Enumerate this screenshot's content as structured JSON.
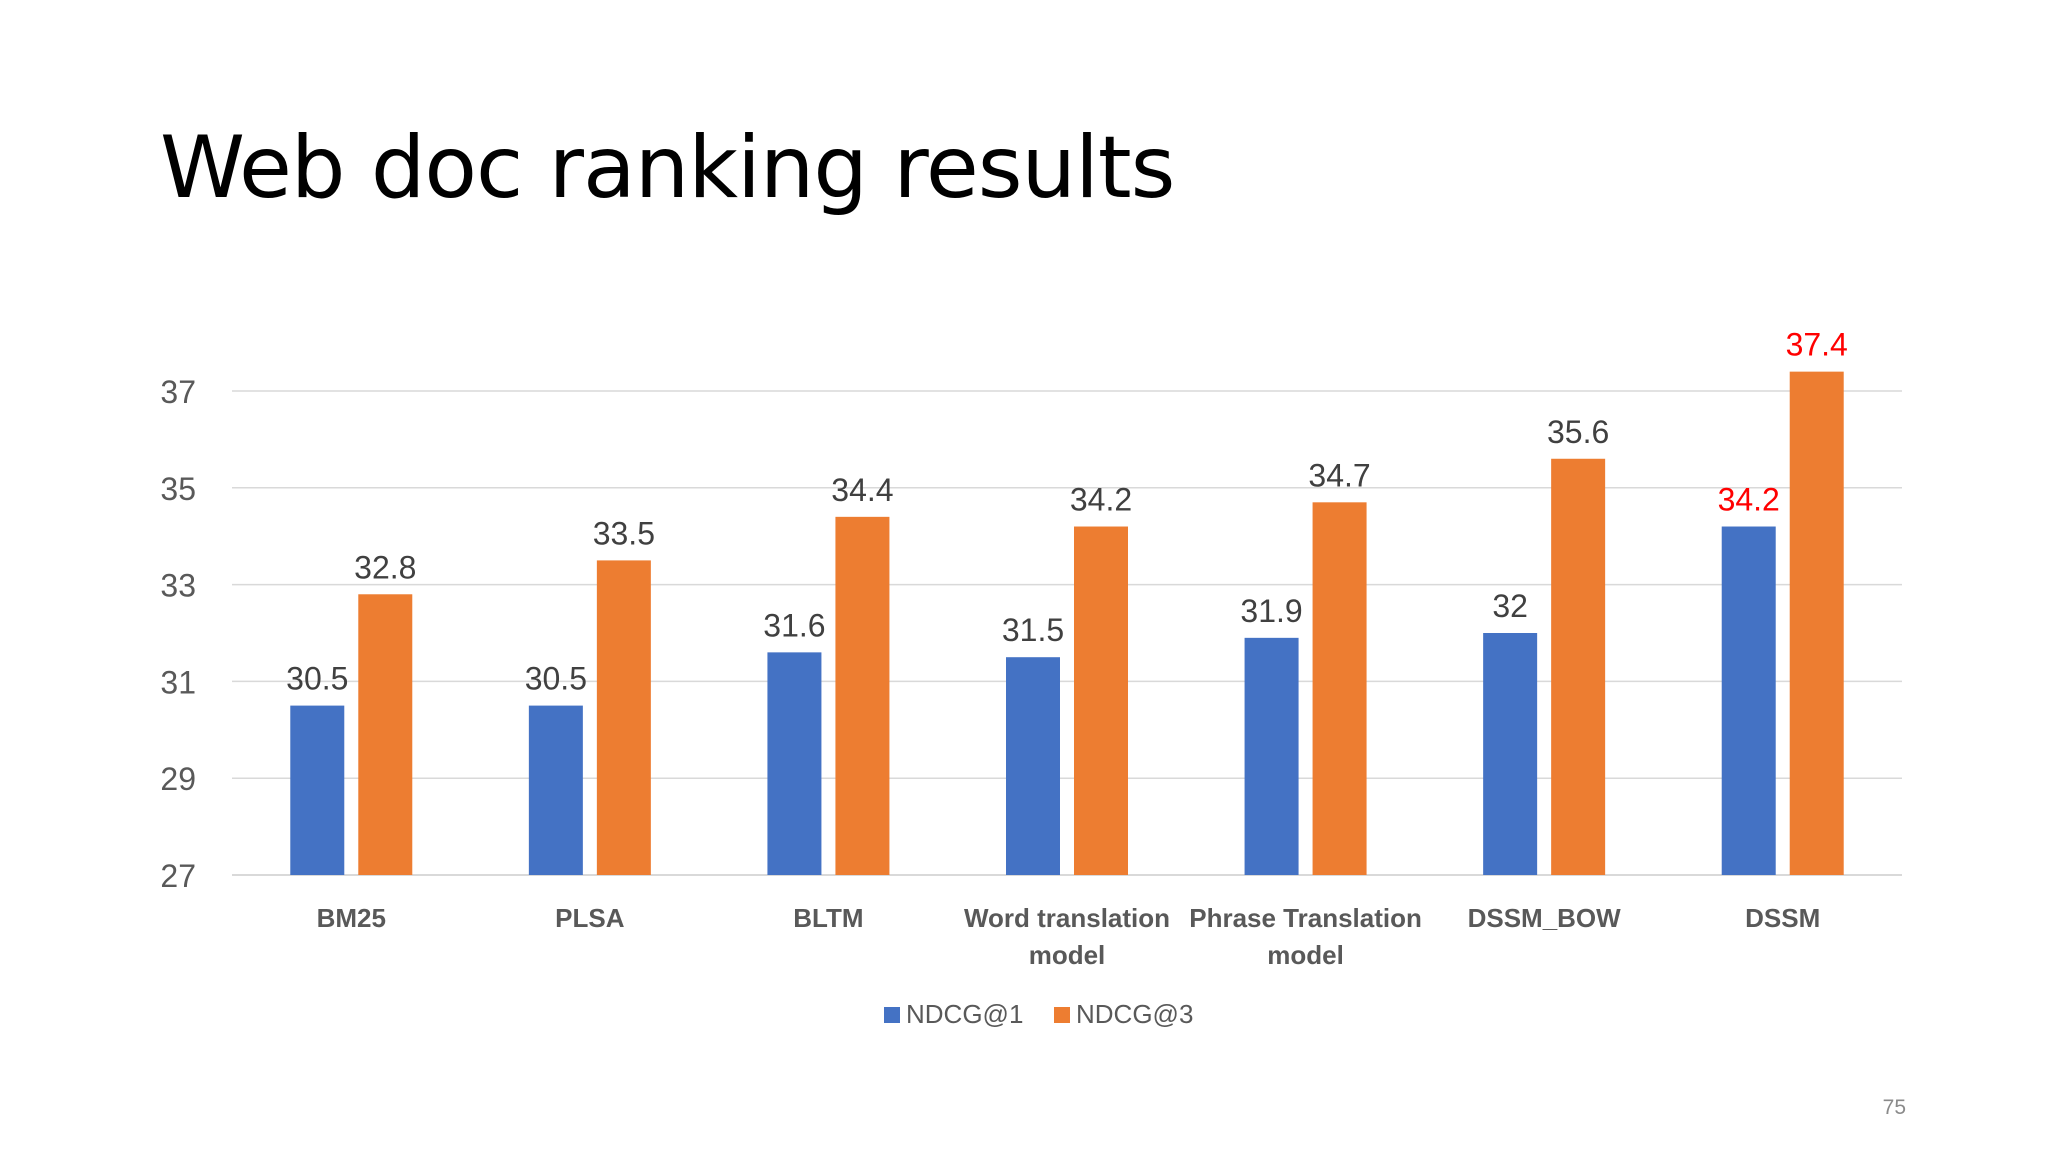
{
  "slide": {
    "title": "Web doc ranking results",
    "page_number": "75"
  },
  "chart_data": {
    "type": "bar",
    "categories": [
      [
        "BM25"
      ],
      [
        "PLSA"
      ],
      [
        "BLTM"
      ],
      [
        "Word translation",
        "model"
      ],
      [
        "Phrase Translation",
        "model"
      ],
      [
        "DSSM_BOW"
      ],
      [
        "DSSM"
      ]
    ],
    "series": [
      {
        "name": "NDCG@1",
        "color": "#4472c4",
        "values": [
          30.5,
          30.5,
          31.6,
          31.5,
          31.9,
          32,
          34.2
        ]
      },
      {
        "name": "NDCG@3",
        "color": "#ed7d31",
        "values": [
          32.8,
          33.5,
          34.4,
          34.2,
          34.7,
          35.6,
          37.4
        ]
      }
    ],
    "highlight": {
      "category_index": 6,
      "label_color": "#ff0000"
    },
    "y_ticks": [
      27,
      29,
      31,
      33,
      35,
      37
    ],
    "ylim": [
      27,
      37.4
    ],
    "grid": true,
    "legend_position": "bottom"
  }
}
